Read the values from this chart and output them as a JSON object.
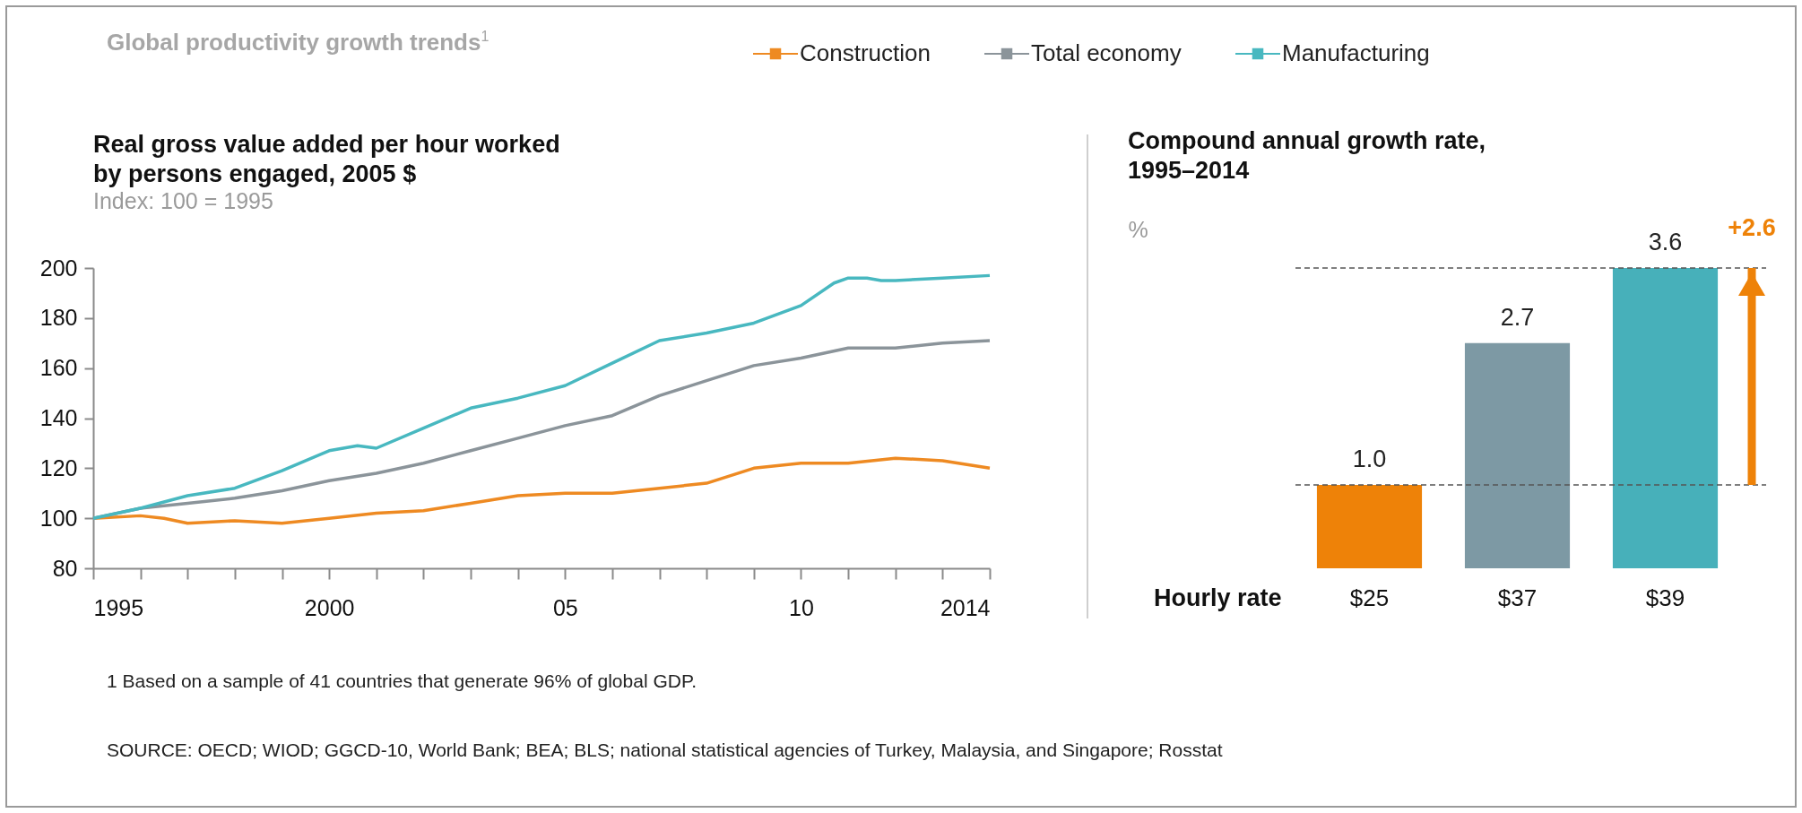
{
  "chart_data": [
    {
      "type": "line",
      "title": "Real gross value added per hour worked by persons engaged, 2005 $",
      "subtitle": "Index: 100 = 1995",
      "legend": "top right",
      "xlim": [
        1995,
        2014
      ],
      "xticks": [
        1995,
        {
          "value": 1996,
          "label": null
        },
        {
          "value": 1997,
          "label": null
        },
        {
          "value": 1998,
          "label": null
        },
        {
          "value": 1999,
          "label": null
        },
        2000,
        {
          "value": 2001,
          "label": null
        },
        {
          "value": 2002,
          "label": null
        },
        {
          "value": 2003,
          "label": null
        },
        {
          "value": 2004,
          "label": null
        },
        {
          "value": 2005,
          "label": "05"
        },
        {
          "value": 2006,
          "label": null
        },
        {
          "value": 2007,
          "label": null
        },
        {
          "value": 2008,
          "label": null
        },
        {
          "value": 2009,
          "label": null
        },
        {
          "value": 2010,
          "label": "10"
        },
        {
          "value": 2011,
          "label": null
        },
        {
          "value": 2012,
          "label": null
        },
        {
          "value": 2013,
          "label": null
        },
        2014
      ],
      "ylim": [
        80,
        200
      ],
      "yticks": [
        80,
        100,
        120,
        140,
        160,
        180,
        200
      ],
      "series": [
        {
          "name": "Construction",
          "color": "#ee8a22",
          "x": [
            1995,
            1996,
            1996.5,
            1997,
            1998,
            1999,
            2000,
            2001,
            2002,
            2003,
            2004,
            2005,
            2006,
            2007,
            2008,
            2009,
            2010,
            2011,
            2012,
            2013,
            2014
          ],
          "values": [
            100,
            101,
            100,
            98,
            99,
            98,
            100,
            102,
            103,
            106,
            109,
            110,
            110,
            112,
            114,
            120,
            122,
            122,
            124,
            123,
            120
          ]
        },
        {
          "name": "Total economy",
          "color": "#8b949a",
          "x": [
            1995,
            1996,
            1997,
            1998,
            1999,
            2000,
            2001,
            2002,
            2003,
            2004,
            2005,
            2006,
            2007,
            2008,
            2009,
            2010,
            2011,
            2012,
            2013,
            2014
          ],
          "values": [
            100,
            104,
            106,
            108,
            111,
            115,
            118,
            122,
            127,
            132,
            137,
            141,
            149,
            155,
            161,
            164,
            168,
            168,
            170,
            171
          ]
        },
        {
          "name": "Manufacturing",
          "color": "#48b8c0",
          "x": [
            1995,
            1996,
            1997,
            1998,
            1999,
            2000,
            2000.6,
            2001,
            2002,
            2003,
            2004,
            2005,
            2006,
            2007,
            2008,
            2009,
            2010,
            2010.7,
            2011,
            2011.4,
            2011.7,
            2012,
            2013,
            2014
          ],
          "values": [
            100,
            104,
            109,
            112,
            119,
            127,
            129,
            128,
            136,
            144,
            148,
            153,
            162,
            171,
            174,
            178,
            185,
            194,
            196,
            196,
            195,
            195,
            196,
            197
          ]
        }
      ],
      "annotations": [
        "Global productivity growth trends$^{1}$",
        "1  Based on a sample of 41 countries that generate 96% of global GDP.",
        "SOURCE:  OECD; WIOD; GGCD-10, World Bank; BEA; BLS; national statistical agencies of Turkey, Malaysia, and Singapore; Rosstat"
      ]
    },
    {
      "type": "bar",
      "title": "Compound annual growth rate, 1995–2014",
      "ylabel": "%",
      "xlabel": "Hourly rate",
      "tick_labels": "x",
      "categories": [
        "$25",
        "$37",
        "$39"
      ],
      "values": [
        1.0,
        2.7,
        3.6
      ],
      "colors": [
        "#ee8208",
        "#7d99a4",
        "#47b0ba"
      ],
      "value_labels": [
        "1.0",
        "2.7",
        "3.6"
      ],
      "ref_lines": [
        {
          "axis": "y",
          "value": 1.0,
          "line_style": "dashed",
          "color": "#555555"
        },
        {
          "axis": "y",
          "value": 3.6,
          "line_style": "dashed",
          "color": "#555555"
        }
      ],
      "annotations": [
        "+2.6"
      ]
    }
  ]
}
